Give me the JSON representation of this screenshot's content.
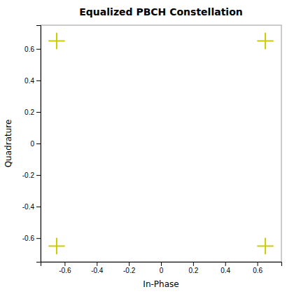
{
  "chart_data": {
    "type": "scatter",
    "title": "Equalized PBCH Constellation",
    "x_label": "In-Phase",
    "y_label": "Quadrature",
    "x": [
      -0.65,
      0.65,
      -0.65,
      0.65
    ],
    "values": [
      0.65,
      0.65,
      -0.65,
      -0.65
    ],
    "color": "#cccc00",
    "marker": "plus",
    "xlim": [
      -0.75,
      0.75
    ],
    "ylim": [
      -0.75,
      0.75
    ],
    "xticks": [
      -0.6,
      -0.4,
      -0.2,
      0,
      0.2,
      0.4,
      0.6
    ],
    "yticks": [
      -0.6,
      -0.4,
      -0.2,
      0,
      0.2,
      0.4,
      0.6
    ]
  }
}
